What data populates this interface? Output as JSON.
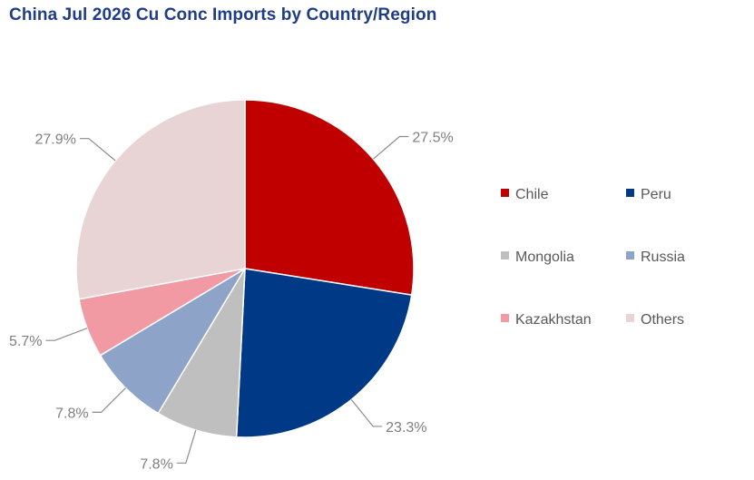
{
  "chart_data": {
    "type": "pie",
    "title": "China Jul 2026 Cu Conc Imports by Country/Region",
    "unit": "%",
    "slices": [
      {
        "label": "Chile",
        "value": 27.5,
        "display": "27.5%",
        "color": "#c00000"
      },
      {
        "label": "Peru",
        "value": 23.3,
        "display": "23.3%",
        "color": "#003a87"
      },
      {
        "label": "Mongolia",
        "value": 7.8,
        "display": "7.8%",
        "color": "#bfbfbf"
      },
      {
        "label": "Russia",
        "value": 7.8,
        "display": "7.8%",
        "color": "#8ea3c8"
      },
      {
        "label": "Kazakhstan",
        "value": 5.7,
        "display": "5.7%",
        "color": "#f29aa3"
      },
      {
        "label": "Others",
        "value": 27.9,
        "display": "27.9%",
        "color": "#e8d4d5"
      }
    ],
    "start_angle_deg": 0,
    "direction": "clockwise",
    "legend_position": "right"
  }
}
